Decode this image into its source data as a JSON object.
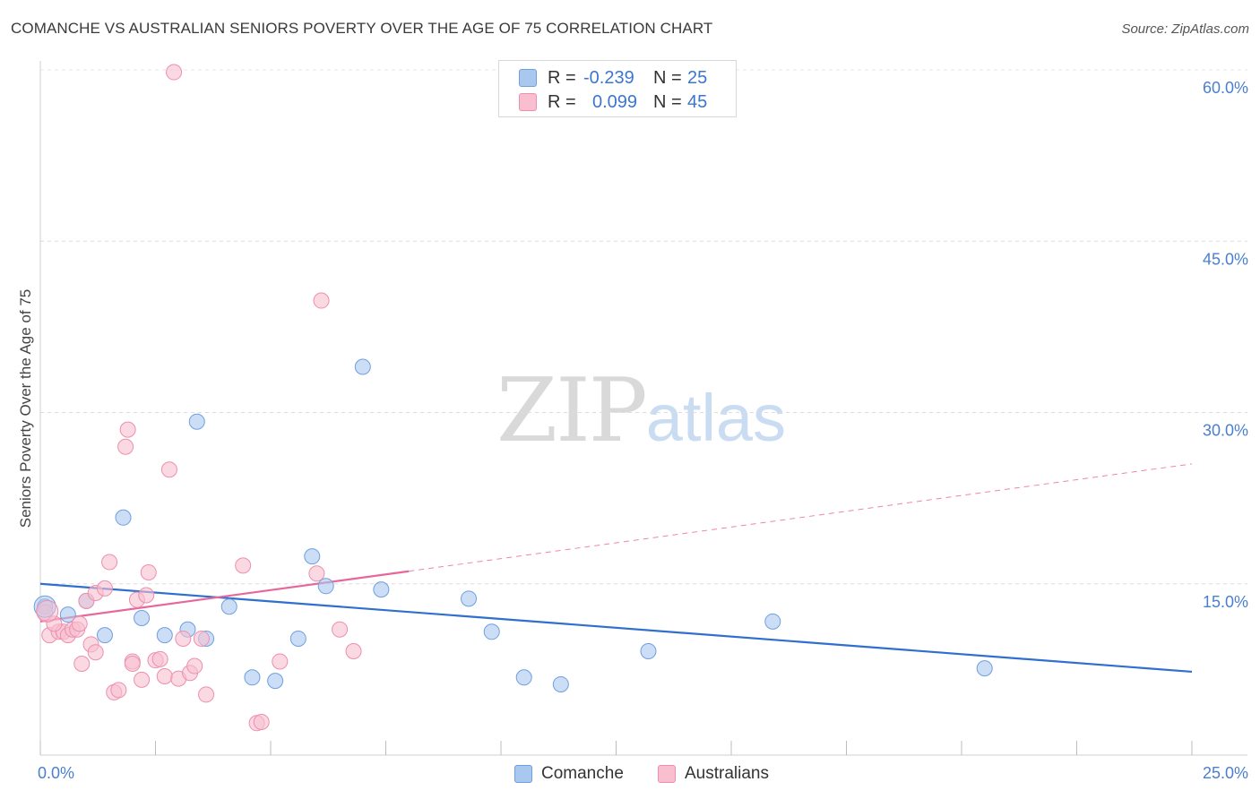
{
  "title": "COMANCHE VS AUSTRALIAN SENIORS POVERTY OVER THE AGE OF 75 CORRELATION CHART",
  "source": "Source: ZipAtlas.com",
  "watermark": {
    "zip": "ZIP",
    "atlas": "atlas"
  },
  "legend": {
    "rows": [
      {
        "r_label": "R =",
        "r_value": "-0.239",
        "n_label": "N =",
        "n_value": "25",
        "color": "#a9c8f0",
        "border": "#6f9fe0"
      },
      {
        "r_label": "R =",
        "r_value": "0.099",
        "n_label": "N =",
        "n_value": "45",
        "color": "#f9bfd0",
        "border": "#ec8fae"
      }
    ]
  },
  "bottom_legend": [
    {
      "label": "Comanche",
      "color": "#a9c8f0",
      "border": "#6f9fe0"
    },
    {
      "label": "Australians",
      "color": "#f9bfd0",
      "border": "#ec8fae"
    }
  ],
  "chart_data": {
    "type": "scatter",
    "title": "COMANCHE VS AUSTRALIAN SENIORS POVERTY OVER THE AGE OF 75 CORRELATION CHART",
    "xlabel": "",
    "ylabel": "Seniors Poverty Over the Age of 75",
    "xlim": [
      0,
      25
    ],
    "ylim": [
      0,
      60
    ],
    "x_tick_labels": [
      "0.0%",
      "25.0%"
    ],
    "y_ticks": [
      15,
      30,
      45,
      60
    ],
    "y_tick_labels": [
      "15.0%",
      "30.0%",
      "45.0%",
      "60.0%"
    ],
    "grid": true,
    "series": [
      {
        "name": "Comanche",
        "color": "#a9c8f0",
        "stroke": "#6f9fe0",
        "line_color": "#2f6fce",
        "points": [
          [
            0.1,
            13.0
          ],
          [
            0.6,
            12.3
          ],
          [
            1.0,
            13.5
          ],
          [
            1.4,
            10.5
          ],
          [
            1.8,
            20.8
          ],
          [
            2.2,
            12.0
          ],
          [
            2.7,
            10.5
          ],
          [
            3.2,
            11.0
          ],
          [
            3.4,
            29.2
          ],
          [
            3.6,
            10.2
          ],
          [
            4.1,
            13.0
          ],
          [
            4.6,
            6.8
          ],
          [
            5.1,
            6.5
          ],
          [
            5.6,
            10.2
          ],
          [
            5.9,
            17.4
          ],
          [
            6.2,
            14.8
          ],
          [
            7.0,
            34.0
          ],
          [
            7.4,
            14.5
          ],
          [
            9.3,
            13.7
          ],
          [
            9.8,
            10.8
          ],
          [
            10.5,
            6.8
          ],
          [
            11.3,
            6.2
          ],
          [
            13.2,
            9.1
          ],
          [
            15.9,
            11.7
          ],
          [
            20.5,
            7.6
          ]
        ],
        "trend": {
          "x": [
            0,
            25
          ],
          "y": [
            15.0,
            7.3
          ],
          "dashed_to": null
        }
      },
      {
        "name": "Australians",
        "color": "#f9bfd0",
        "stroke": "#ec8fae",
        "line_color": "#e8679a",
        "points": [
          [
            0.1,
            12.5
          ],
          [
            0.2,
            10.5
          ],
          [
            0.4,
            10.8
          ],
          [
            0.5,
            10.8
          ],
          [
            0.6,
            10.5
          ],
          [
            0.7,
            11.0
          ],
          [
            0.8,
            11.0
          ],
          [
            0.85,
            11.5
          ],
          [
            0.9,
            8.0
          ],
          [
            1.0,
            13.5
          ],
          [
            1.1,
            9.7
          ],
          [
            1.2,
            14.2
          ],
          [
            1.2,
            9.0
          ],
          [
            1.4,
            14.6
          ],
          [
            1.5,
            16.9
          ],
          [
            1.6,
            5.5
          ],
          [
            1.7,
            5.7
          ],
          [
            1.85,
            27.0
          ],
          [
            1.9,
            28.5
          ],
          [
            2.0,
            8.2
          ],
          [
            2.0,
            8.0
          ],
          [
            2.1,
            13.6
          ],
          [
            2.2,
            6.6
          ],
          [
            2.3,
            14.0
          ],
          [
            2.35,
            16.0
          ],
          [
            2.5,
            8.3
          ],
          [
            2.6,
            8.4
          ],
          [
            2.7,
            6.9
          ],
          [
            2.8,
            25.0
          ],
          [
            2.9,
            59.8
          ],
          [
            3.0,
            6.7
          ],
          [
            3.1,
            10.2
          ],
          [
            3.25,
            7.2
          ],
          [
            3.35,
            7.8
          ],
          [
            3.5,
            10.2
          ],
          [
            3.6,
            5.3
          ],
          [
            4.4,
            16.6
          ],
          [
            4.7,
            2.8
          ],
          [
            4.8,
            2.9
          ],
          [
            5.2,
            8.2
          ],
          [
            6.0,
            15.9
          ],
          [
            6.1,
            39.8
          ],
          [
            6.5,
            11.0
          ],
          [
            6.8,
            9.1
          ],
          [
            0.3,
            11.5
          ]
        ],
        "trend": {
          "x": [
            0,
            8.0
          ],
          "y": [
            11.7,
            16.1
          ],
          "dashed_to": [
            25,
            25.5
          ]
        }
      }
    ]
  }
}
